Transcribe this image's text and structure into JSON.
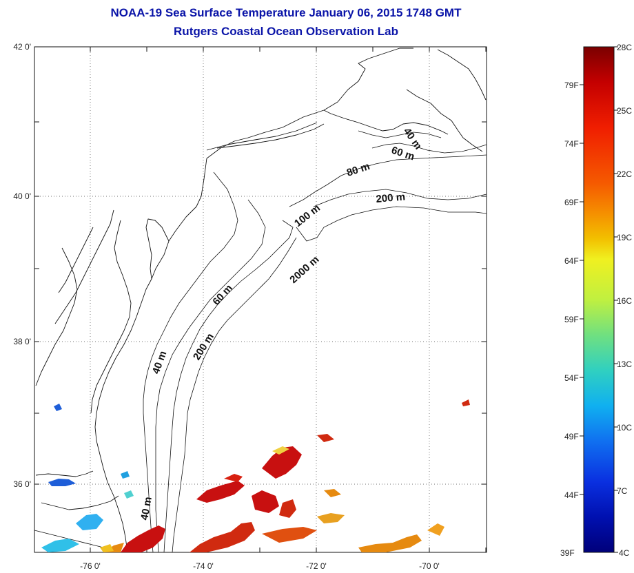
{
  "title": {
    "line1": "NOAA-19 Sea Surface Temperature January 06, 2015 1748 GMT",
    "line2": "Rutgers Coastal Ocean Observation Lab"
  },
  "map": {
    "lat_labels": [
      "42 0'",
      "40 0'",
      "38 0'",
      "36 0'"
    ],
    "lon_labels": [
      "-76 0'",
      "-74 0'",
      "-72 0'",
      "-70 0'"
    ],
    "contour_labels": [
      "40 m",
      "60 m",
      "80 m",
      "200 m",
      "100 m",
      "2000 m",
      "60 m",
      "200 m",
      "40 m",
      "40 m"
    ]
  },
  "colorbar": {
    "celsius_labels": [
      "28C",
      "25C",
      "22C",
      "19C",
      "16C",
      "13C",
      "10C",
      "7C",
      "4C"
    ],
    "fahrenheit_labels": [
      "79F",
      "74F",
      "69F",
      "64F",
      "59F",
      "54F",
      "49F",
      "44F",
      "39F"
    ],
    "colors": [
      "#7a0000",
      "#c40000",
      "#f01e00",
      "#f55a00",
      "#f59000",
      "#f2c000",
      "#f0f020",
      "#c0f040",
      "#70e080",
      "#30d0c0",
      "#10b0f0",
      "#1070f0",
      "#0a30e0",
      "#0010b0",
      "#00007a"
    ]
  },
  "sst_colors": {
    "warm": "#c81010",
    "orange": "#e68a10",
    "cyan": "#30c0e8",
    "blue": "#1e5ed8"
  }
}
